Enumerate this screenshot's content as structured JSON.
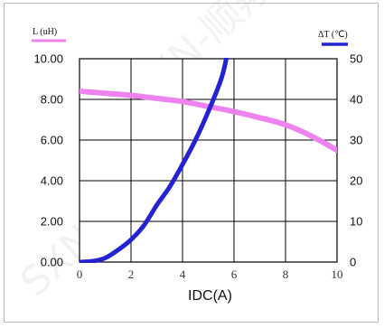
{
  "chart_data": {
    "type": "line",
    "xlabel": "IDC(A)",
    "x_ticks": [
      "0",
      "2",
      "4",
      "6",
      "8",
      "10"
    ],
    "y_left_ticks": [
      "0.00",
      "2.00",
      "4.00",
      "6.00",
      "8.00",
      "10.00"
    ],
    "y_right_ticks": [
      "0",
      "10",
      "20",
      "30",
      "40",
      "50"
    ],
    "xlim": [
      0,
      10
    ],
    "ylim_left": [
      0,
      10
    ],
    "ylim_right": [
      0,
      50
    ],
    "grid": true,
    "legend_placement": "top",
    "series": [
      {
        "name": "L (uH)",
        "axis": "left",
        "color": "#ee82ee",
        "x": [
          0,
          1,
          2,
          3,
          4,
          5,
          6,
          7,
          8,
          9,
          10
        ],
        "y": [
          8.4,
          8.3,
          8.2,
          8.05,
          7.9,
          7.65,
          7.4,
          7.1,
          6.75,
          6.2,
          5.5
        ]
      },
      {
        "name": "ΔT (℃)",
        "axis": "right",
        "color": "#2323d2",
        "x": [
          0,
          0.5,
          1,
          1.5,
          2,
          2.5,
          3,
          3.5,
          4,
          4.5,
          5,
          5.5,
          5.7
        ],
        "y": [
          0,
          0.2,
          1,
          3,
          5.5,
          9,
          14,
          18.5,
          24,
          30,
          37,
          45,
          50
        ]
      }
    ]
  },
  "watermark": "SXN-顺翔诺"
}
